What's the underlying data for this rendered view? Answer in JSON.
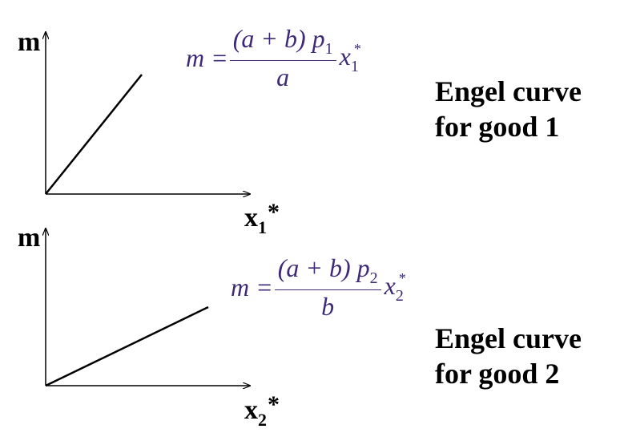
{
  "graph1": {
    "y_label": "m",
    "x_label": {
      "base": "x",
      "sub": "1",
      "star": "*"
    },
    "caption": {
      "line1": "Engel curve",
      "line2": "for good 1"
    },
    "formula": {
      "lhs": "m =",
      "num": "(a + b) p",
      "num_sub": "1",
      "den": "a",
      "x": "x",
      "x_sub": "1",
      "x_sup": "*"
    }
  },
  "graph2": {
    "y_label": "m",
    "x_label": {
      "base": "x",
      "sub": "2",
      "star": "*"
    },
    "caption": {
      "line1": "Engel curve",
      "line2": "for good 2"
    },
    "formula": {
      "lhs": "m =",
      "num": "(a + b) p",
      "num_sub": "2",
      "den": "b",
      "x": "x",
      "x_sub": "2",
      "x_sup": "*"
    }
  },
  "colors": {
    "formula": "#3f2a7a",
    "axis": "#000000"
  }
}
